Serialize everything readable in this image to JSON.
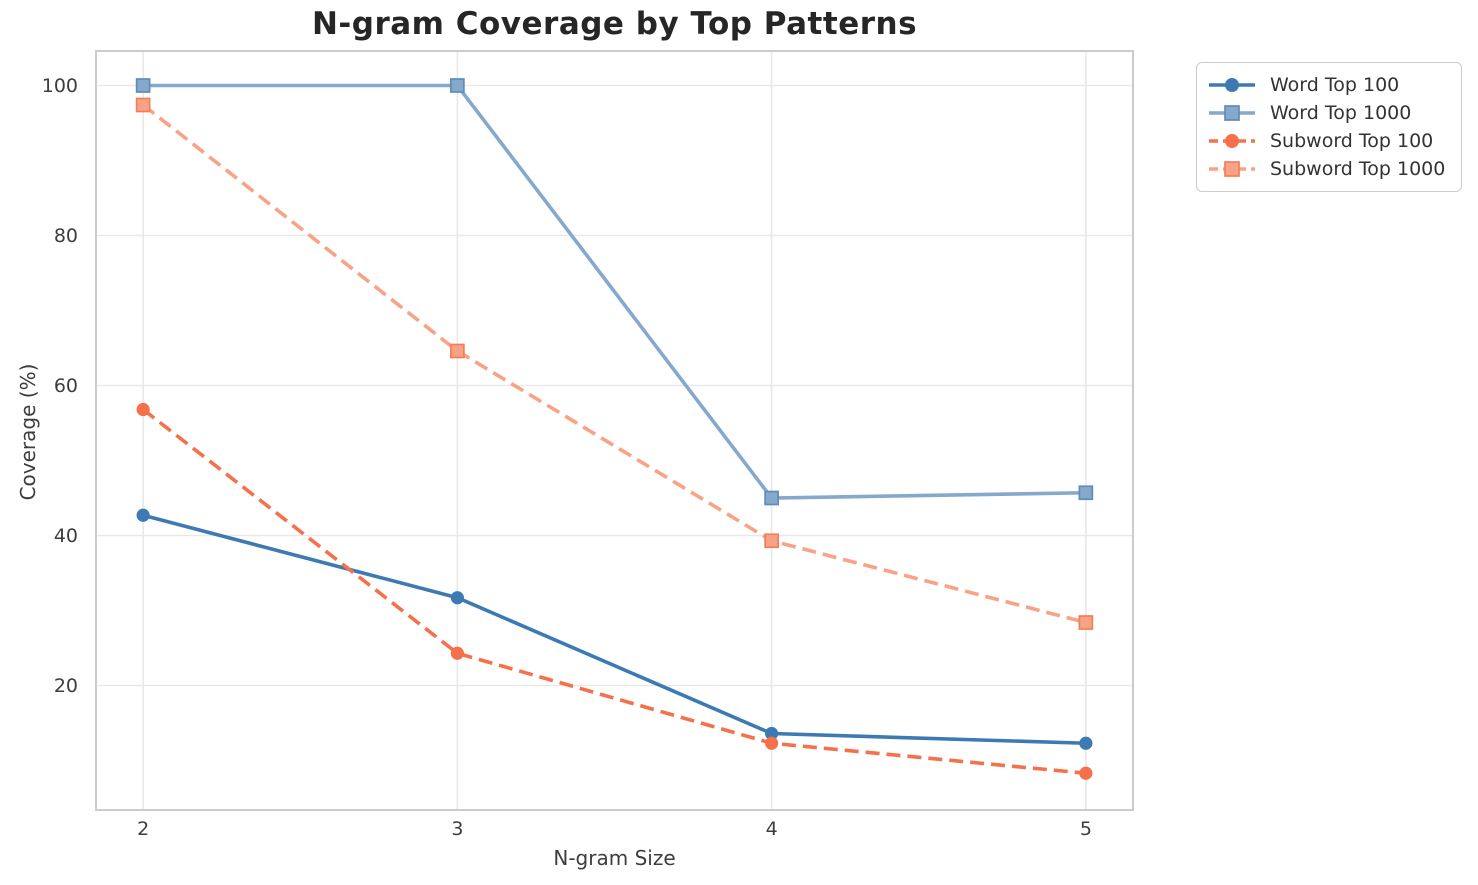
{
  "figure": {
    "background": "#ffffff"
  },
  "chart_data": {
    "type": "line",
    "title": "N-gram Coverage by Top Patterns",
    "xlabel": "N-gram Size",
    "ylabel": "Coverage (%)",
    "x": [
      2,
      3,
      4,
      5
    ],
    "x_tick_labels": [
      "2",
      "3",
      "4",
      "5"
    ],
    "y_ticks": [
      20,
      40,
      60,
      80,
      100
    ],
    "xlim": [
      1.85,
      5.15
    ],
    "ylim": [
      3.4,
      104.6
    ],
    "grid": true,
    "legend_position": "upper right, outside axes",
    "series": [
      {
        "name": "Word Top 100",
        "color": "#3d7ab3",
        "line_style": "solid",
        "marker": "circle",
        "values": [
          42.7,
          31.7,
          13.6,
          12.3
        ]
      },
      {
        "name": "Word Top 1000",
        "color": "#84a9cc",
        "marker_edge": "#5d8db8",
        "line_style": "solid",
        "marker": "square",
        "values": [
          100.0,
          100.0,
          45.0,
          45.7
        ]
      },
      {
        "name": "Subword Top 100",
        "color": "#f4714b",
        "line_style": "dashed",
        "marker": "circle",
        "values": [
          56.8,
          24.3,
          12.3,
          8.3
        ]
      },
      {
        "name": "Subword Top 1000",
        "color": "#f8a286",
        "marker_edge": "#f37e57",
        "line_style": "dashed",
        "marker": "square",
        "values": [
          97.4,
          64.6,
          39.3,
          28.4
        ]
      }
    ]
  },
  "style": {
    "grid_color": "#e9e9e9",
    "spine_color": "#cccccc",
    "tick_label_color": "#3d3d3d",
    "axis_label_color": "#3d3d3d",
    "title_color": "#262626",
    "legend_border_color": "#cccccc",
    "legend_text_color": "#333333"
  }
}
